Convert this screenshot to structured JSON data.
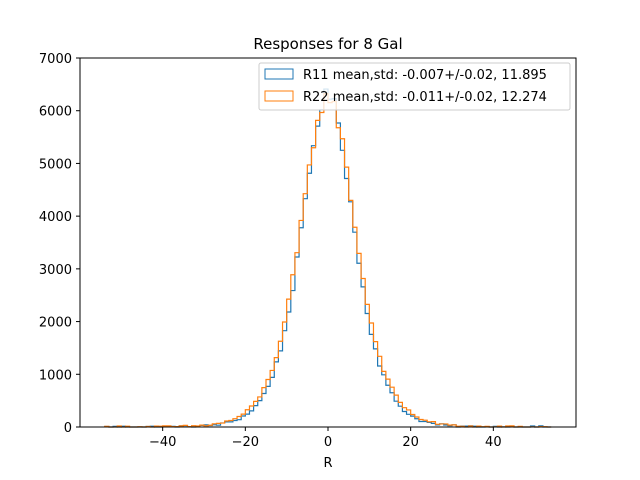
{
  "chart_data": {
    "type": "histogram",
    "title": "Responses for 8 Gal",
    "xlabel": "R",
    "ylabel": "",
    "xlim": [
      -60,
      60
    ],
    "ylim": [
      0,
      7000
    ],
    "xticks": [
      -40,
      -20,
      0,
      20,
      40
    ],
    "xtick_labels": [
      "−40",
      "−20",
      "0",
      "20",
      "40"
    ],
    "yticks": [
      0,
      1000,
      2000,
      3000,
      4000,
      5000,
      6000,
      7000
    ],
    "ytick_labels": [
      "0",
      "1000",
      "2000",
      "3000",
      "4000",
      "5000",
      "6000",
      "7000"
    ],
    "grid": false,
    "legend_position": "upper-right",
    "histtype": "step",
    "bin_range": [
      -54,
      54
    ],
    "bin_width": 1,
    "series": [
      {
        "name": "R11 mean,std: -0.007+/-0.02, 11.895",
        "color": "#1f77b4",
        "mean": -0.007,
        "std": 11.895,
        "peak": 6300,
        "tail_scale": 8.5
      },
      {
        "name": "R22 mean,std: -0.011+/-0.02, 12.274",
        "color": "#ff7f0e",
        "mean": -0.011,
        "std": 12.274,
        "peak": 6260,
        "tail_scale": 8.9
      }
    ]
  }
}
